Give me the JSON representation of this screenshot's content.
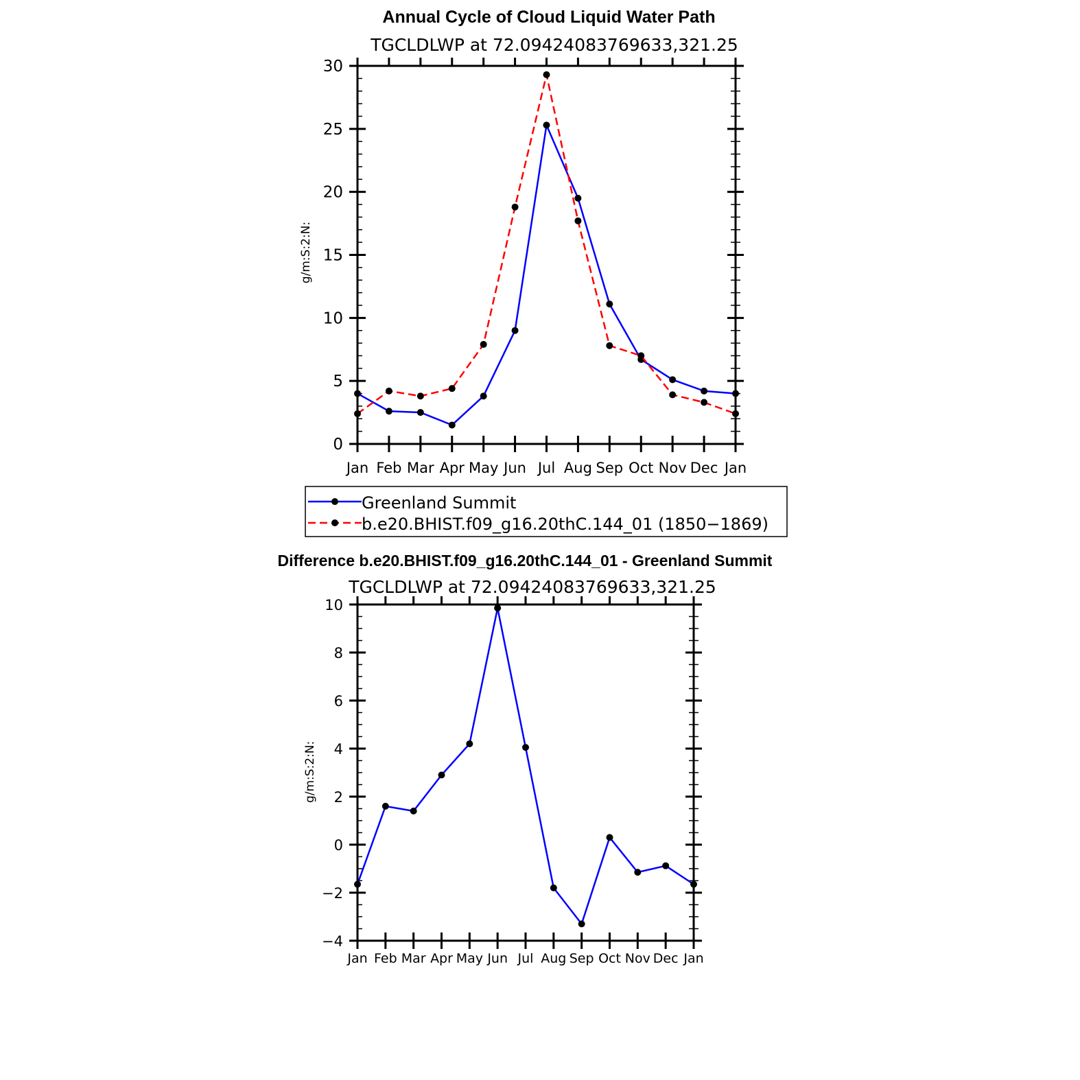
{
  "chart_data": [
    {
      "type": "line",
      "title": "Annual Cycle of Cloud Liquid Water Path",
      "subtitle": "TGCLDLWP at 72.09424083769633,321.25",
      "ylabel": "g/m:S:2:N:",
      "xlabel": "",
      "categories": [
        "Jan",
        "Feb",
        "Mar",
        "Apr",
        "May",
        "Jun",
        "Jul",
        "Aug",
        "Sep",
        "Oct",
        "Nov",
        "Dec",
        "Jan"
      ],
      "ylim": [
        0,
        30
      ],
      "yticks": [
        "0",
        "5",
        "10",
        "15",
        "20",
        "25",
        "30"
      ],
      "series": [
        {
          "name": "Greenland Summit",
          "color": "#0000ff",
          "dash": "solid",
          "values": [
            4.0,
            2.6,
            2.5,
            1.5,
            3.8,
            9.0,
            25.3,
            19.5,
            11.1,
            6.7,
            5.1,
            4.2,
            4.0
          ]
        },
        {
          "name": "b.e20.BHIST.f09_g16.20thC.144_01 (1850−1869)",
          "color": "#ff0000",
          "dash": "dashed",
          "values": [
            2.4,
            4.2,
            3.8,
            4.4,
            7.9,
            18.8,
            29.3,
            17.7,
            7.8,
            7.0,
            3.9,
            3.3,
            2.4
          ]
        }
      ],
      "legend": "below"
    },
    {
      "type": "line",
      "title": "Difference b.e20.BHIST.f09_g16.20thC.144_01 - Greenland Summit",
      "subtitle": "TGCLDLWP at 72.09424083769633,321.25",
      "ylabel": "g/m:S:2:N:",
      "xlabel": "",
      "categories": [
        "Jan",
        "Feb",
        "Mar",
        "Apr",
        "May",
        "Jun",
        "Jul",
        "Aug",
        "Sep",
        "Oct",
        "Nov",
        "Dec",
        "Jan"
      ],
      "ylim": [
        -4,
        10
      ],
      "yticks": [
        "−4",
        "−2",
        "0",
        "2",
        "4",
        "6",
        "8",
        "10"
      ],
      "series": [
        {
          "name": "Difference",
          "color": "#0000ff",
          "dash": "solid",
          "values": [
            -1.65,
            1.6,
            1.4,
            2.9,
            4.2,
            9.85,
            4.05,
            -1.8,
            -3.3,
            0.3,
            -1.15,
            -0.88,
            -1.65
          ]
        }
      ]
    }
  ]
}
